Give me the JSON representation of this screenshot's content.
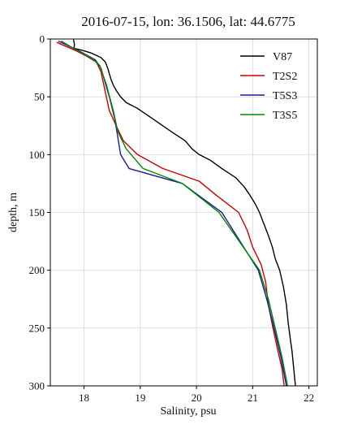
{
  "chart_data": {
    "type": "line",
    "title": "2016-07-15, lon: 36.1506,  lat: 44.6775",
    "xlabel": "Salinity, psu",
    "ylabel": "depth, m",
    "xlim": [
      17.4,
      22.15
    ],
    "ylim": [
      300,
      0
    ],
    "y_inverted": true,
    "grid": true,
    "legend_position": "top-right",
    "x_ticks": [
      18,
      19,
      20,
      21,
      22
    ],
    "y_ticks": [
      0,
      50,
      100,
      150,
      200,
      250,
      300
    ],
    "series": [
      {
        "name": "V87",
        "color": "#000000",
        "x": [
          17.81,
          17.83,
          17.82,
          17.98,
          18.12,
          18.3,
          18.38,
          18.42,
          18.45,
          18.48,
          18.52,
          18.58,
          18.65,
          18.75,
          18.95,
          19.25,
          19.55,
          19.8,
          19.92,
          20.05,
          20.25,
          20.45,
          20.7,
          20.85,
          20.95,
          21.05,
          21.12,
          21.2,
          21.28,
          21.35,
          21.4,
          21.48,
          21.55,
          21.6,
          21.63,
          21.67,
          21.7,
          21.72,
          21.74,
          21.76
        ],
        "y": [
          0,
          5,
          8,
          10,
          12,
          16,
          20,
          25,
          30,
          35,
          40,
          45,
          50,
          55,
          60,
          70,
          80,
          88,
          95,
          100,
          105,
          112,
          120,
          128,
          135,
          143,
          150,
          160,
          170,
          180,
          190,
          200,
          215,
          230,
          245,
          260,
          270,
          280,
          290,
          300
        ]
      },
      {
        "name": "T2S2",
        "color": "#cc0000",
        "x": [
          17.52,
          17.85,
          18.05,
          18.22,
          18.3,
          18.45,
          18.62,
          18.7,
          18.95,
          19.4,
          20.05,
          20.35,
          20.75,
          20.9,
          21.0,
          21.15,
          21.23,
          21.28,
          21.36,
          21.45,
          21.52,
          21.56
        ],
        "y": [
          3,
          10,
          15,
          20,
          28,
          62,
          80,
          88,
          100,
          112,
          123,
          135,
          150,
          165,
          180,
          195,
          210,
          230,
          250,
          270,
          285,
          300
        ]
      },
      {
        "name": "T5S3",
        "color": "#1a1a99",
        "x": [
          17.55,
          17.9,
          18.2,
          18.3,
          18.45,
          18.55,
          18.65,
          18.8,
          19.75,
          20.45,
          21.1,
          21.25,
          21.38,
          21.5,
          21.6
        ],
        "y": [
          2,
          10,
          18,
          25,
          50,
          70,
          100,
          112,
          125,
          150,
          200,
          225,
          250,
          275,
          300
        ]
      },
      {
        "name": "T3S5",
        "color": "#008800",
        "x": [
          17.6,
          17.88,
          18.15,
          18.28,
          18.4,
          18.52,
          18.6,
          18.75,
          19.05,
          19.75,
          20.4,
          21.12,
          21.28,
          21.4,
          21.52,
          21.62
        ],
        "y": [
          2,
          10,
          17,
          23,
          40,
          62,
          80,
          95,
          112,
          125,
          150,
          200,
          225,
          250,
          275,
          300
        ]
      }
    ]
  }
}
